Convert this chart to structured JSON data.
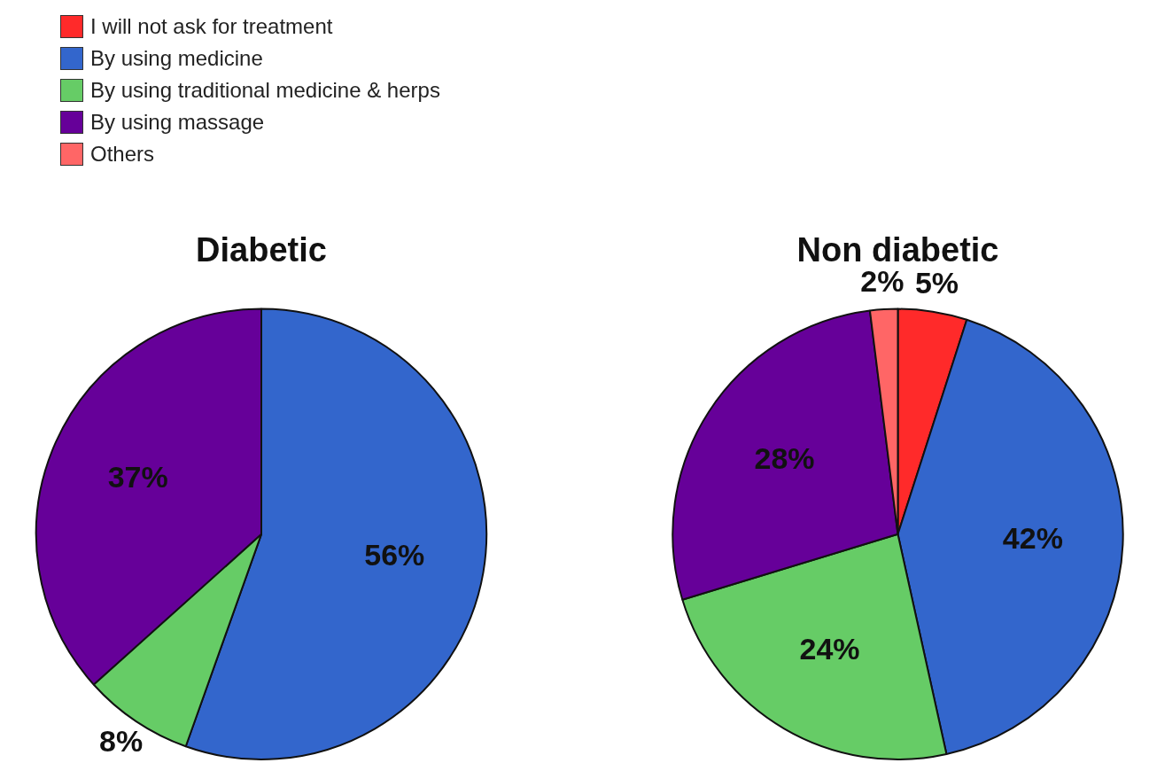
{
  "chart_data": [
    {
      "type": "pie",
      "title": "Diabetic",
      "legend": "top left",
      "categories": [
        "I will not  ask for treatment",
        "By using medicine",
        "By using traditional medicine & herps",
        "By using massage",
        "Others"
      ],
      "values": [
        null,
        56,
        8,
        37,
        null
      ],
      "value_labels": [
        null,
        "56%",
        "8%",
        "37%",
        null
      ],
      "colors": [
        "#ff2a2a",
        "#3366cc",
        "#66cc66",
        "#660099",
        "#ff6666"
      ]
    },
    {
      "type": "pie",
      "title": "Non diabetic",
      "categories": [
        null,
        null,
        null,
        null,
        null
      ],
      "values": [
        5,
        42,
        24,
        28,
        2
      ],
      "value_labels": [
        "5%",
        "42%",
        "24%",
        "28%",
        "2%"
      ],
      "colors": [
        "#ff2a2a",
        "#3366cc",
        "#66cc66",
        "#660099",
        "#ff6666"
      ]
    }
  ]
}
